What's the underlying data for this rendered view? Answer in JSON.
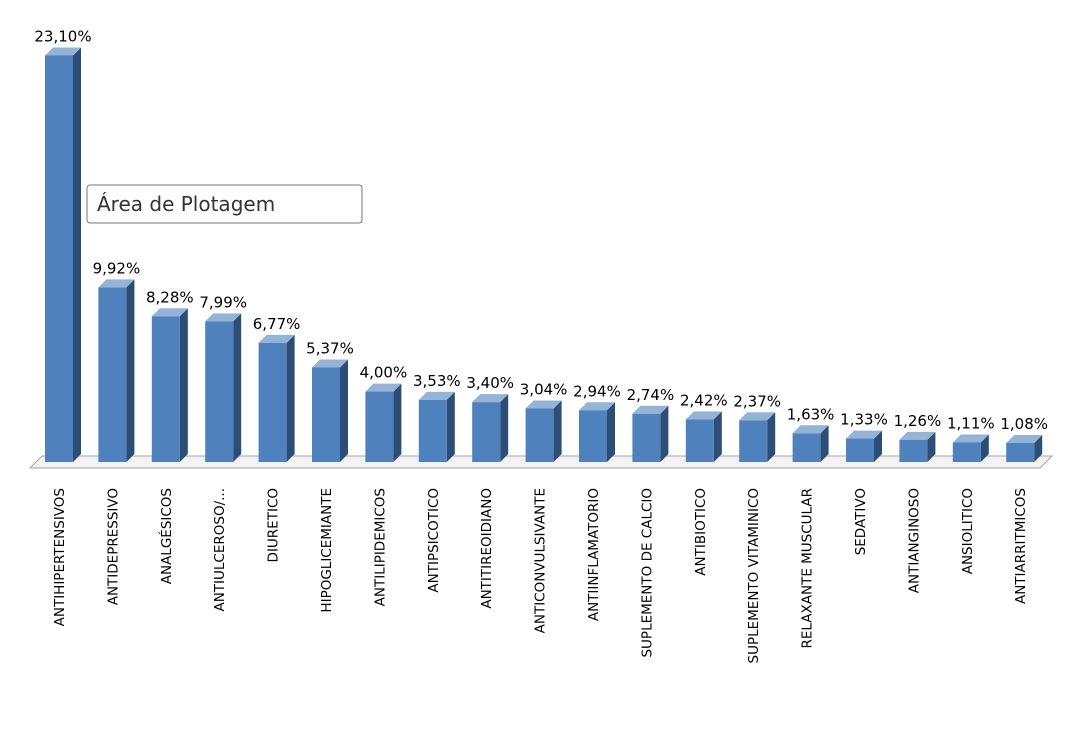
{
  "chart_data": {
    "type": "bar3d",
    "categories": [
      "ANTIHIPERTENSIVOS",
      "ANTIDEPRESSIVO",
      "ANALGÉSICOS",
      "ANTIULCEROSO/...",
      "DIURETICO",
      "HIPOGLICEMIANTE",
      "ANTILIPIDEMICOS",
      "ANTIPSICOTICO",
      "ANTITIREOIDIANO",
      "ANTICONVULSIVANTE",
      "ANTIINFLAMATORIO",
      "SUPLEMENTO DE CALCIO",
      "ANTIBIOTICO",
      "SUPLEMENTO VITAMINICO",
      "RELAXANTE MUSCULAR",
      "SEDATIVO",
      "ANTIANGINOSO",
      "ANSIOLITICO",
      "ANTIARRITMICOS"
    ],
    "values": [
      23.1,
      9.92,
      8.28,
      7.99,
      6.77,
      5.37,
      4.0,
      3.53,
      3.4,
      3.04,
      2.94,
      2.74,
      2.42,
      2.37,
      1.63,
      1.33,
      1.26,
      1.11,
      1.08
    ],
    "value_labels": [
      "23,10%",
      "9,92%",
      "8,28%",
      "7,99%",
      "6,77%",
      "5,37%",
      "4,00%",
      "3,53%",
      "3,40%",
      "3,04%",
      "2,94%",
      "2,74%",
      "2,42%",
      "2,37%",
      "1,63%",
      "1,33%",
      "1,26%",
      "1,11%",
      "1,08%"
    ],
    "color": "#4f81bd",
    "ylim": [
      0,
      25
    ],
    "tooltip": "Área de Plotagem"
  }
}
